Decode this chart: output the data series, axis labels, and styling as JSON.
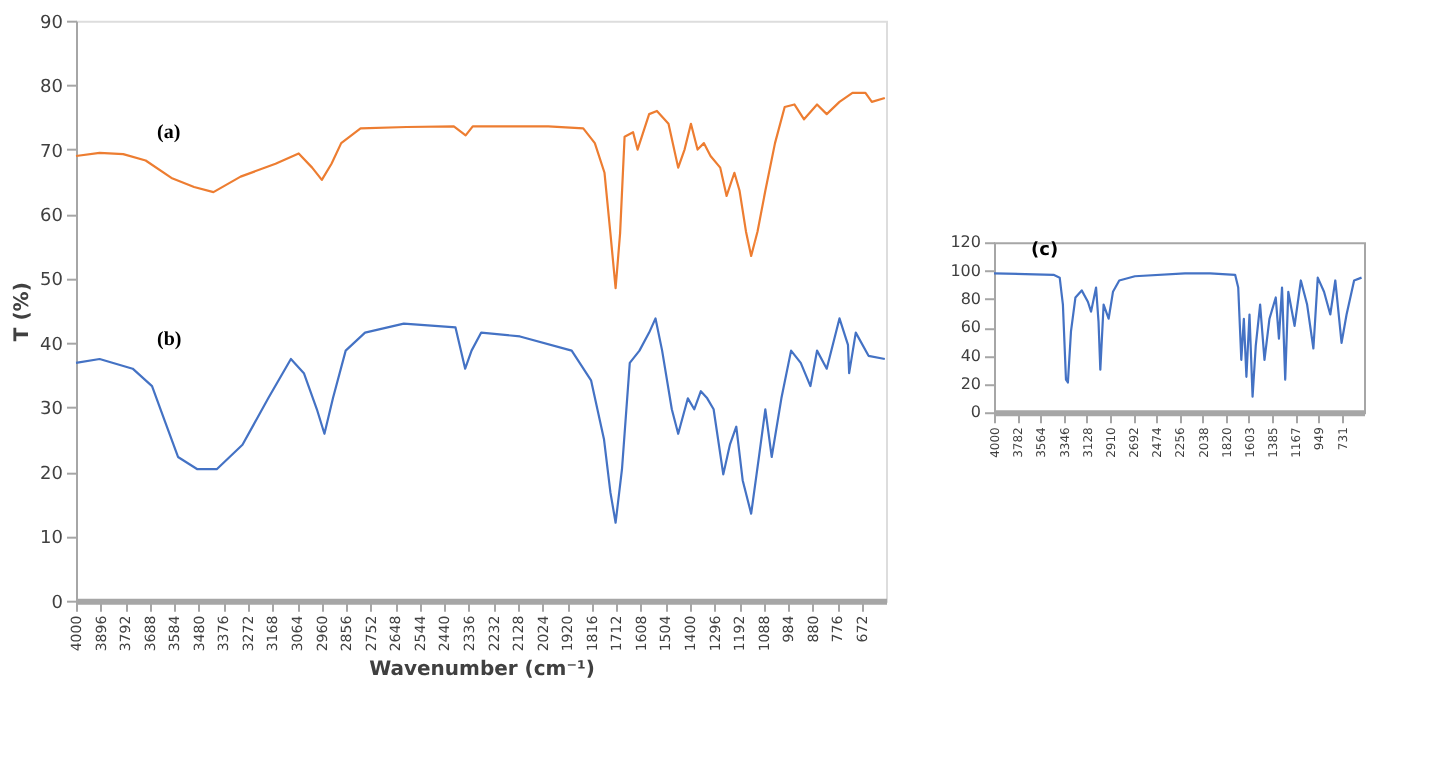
{
  "chart_data": [
    {
      "type": "line",
      "xlabel": "Wavenumber (cm⁻¹)",
      "ylabel": "T (%)",
      "xlim": [
        4000,
        570
      ],
      "ylim": [
        0,
        90
      ],
      "xticks": [
        4000,
        3896,
        3792,
        3688,
        3584,
        3480,
        3376,
        3272,
        3168,
        3064,
        2960,
        2856,
        2752,
        2648,
        2544,
        2440,
        2336,
        2232,
        2128,
        2024,
        1920,
        1816,
        1712,
        1608,
        1504,
        1400,
        1296,
        1192,
        1088,
        984,
        880,
        776,
        672
      ],
      "yticks": [
        0,
        10,
        20,
        30,
        40,
        50,
        60,
        70,
        80,
        90
      ],
      "series": [
        {
          "color": "#ed7d31",
          "x": [
            4000,
            3900,
            3800,
            3705,
            3596,
            3500,
            3418,
            3303,
            3155,
            3057,
            3000,
            2959,
            2918,
            2877,
            2795,
            2600,
            2400,
            2350,
            2320,
            2000,
            1852,
            1803,
            1762,
            1737,
            1715,
            1696,
            1677,
            1641,
            1622,
            1573,
            1540,
            1491,
            1450,
            1423,
            1396,
            1368,
            1341,
            1313,
            1272,
            1245,
            1212,
            1190,
            1163,
            1141,
            1114,
            1081,
            1040,
            999,
            958,
            917,
            862,
            821,
            767,
            712,
            657,
            630,
            575
          ],
          "values": [
            69,
            69.5,
            69.3,
            68.3,
            65.6,
            64.2,
            63.4,
            65.8,
            67.8,
            69.4,
            67.2,
            65.3,
            67.8,
            71,
            73.3,
            73.5,
            73.6,
            72.2,
            73.6,
            73.6,
            73.3,
            71,
            66.4,
            57,
            48.5,
            57,
            72,
            72.7,
            70,
            75.5,
            76,
            74,
            67.2,
            70,
            74,
            70,
            71,
            69,
            67.2,
            62.8,
            66.4,
            63.6,
            57.3,
            53.5,
            57.3,
            63.6,
            71,
            76.6,
            77,
            74.7,
            77,
            75.5,
            77.4,
            78.8,
            78.8,
            77.4,
            78
          ]
        },
        {
          "color": "#4472c4",
          "x": [
            4000,
            3900,
            3760,
            3678,
            3623,
            3568,
            3486,
            3404,
            3295,
            3186,
            3090,
            3035,
            2980,
            2948,
            2912,
            2858,
            2776,
            2612,
            2393,
            2352,
            2325,
            2284,
            2120,
            1901,
            1819,
            1764,
            1737,
            1715,
            1688,
            1655,
            1614,
            1573,
            1546,
            1518,
            1477,
            1450,
            1409,
            1382,
            1354,
            1327,
            1300,
            1259,
            1231,
            1204,
            1177,
            1141,
            1108,
            1081,
            1054,
            1013,
            972,
            931,
            890,
            862,
            821,
            767,
            731,
            726,
            698,
            644,
            575
          ],
          "values": [
            36.9,
            37.5,
            36,
            33.3,
            27.8,
            22.3,
            20.4,
            20.4,
            24.2,
            31.4,
            37.5,
            35.3,
            29.7,
            25.9,
            31.4,
            38.8,
            41.6,
            43,
            42.4,
            36,
            38.8,
            41.6,
            41,
            38.8,
            34.2,
            25,
            16.8,
            12.1,
            20.4,
            36.9,
            38.8,
            41.6,
            43.8,
            38.8,
            29.7,
            25.9,
            31.4,
            29.7,
            32.5,
            31.4,
            29.7,
            19.6,
            24.2,
            27,
            18.7,
            13.5,
            22.3,
            29.7,
            22.3,
            31.4,
            38.8,
            36.9,
            33.3,
            38.8,
            36,
            43.8,
            39.7,
            35.3,
            41.6,
            38,
            37.5
          ]
        }
      ],
      "annotations": [
        "(a)",
        "(b)"
      ]
    },
    {
      "type": "line",
      "xlim": [
        4000,
        520
      ],
      "ylim": [
        0,
        120
      ],
      "xticks": [
        4000,
        3782,
        3564,
        3346,
        3128,
        2910,
        2692,
        2474,
        2256,
        2038,
        1820,
        1603,
        1385,
        1167,
        949,
        731
      ],
      "yticks": [
        0,
        20,
        40,
        60,
        80,
        100,
        120
      ],
      "series": [
        {
          "color": "#4472c4",
          "x": [
            4000,
            3440,
            3382,
            3352,
            3323,
            3305,
            3276,
            3234,
            3175,
            3117,
            3087,
            3040,
            3017,
            3000,
            2969,
            2922,
            2881,
            2822,
            2675,
            2204,
            1968,
            1732,
            1703,
            1674,
            1650,
            1626,
            1597,
            1568,
            1538,
            1497,
            1456,
            1409,
            1350,
            1320,
            1291,
            1261,
            1232,
            1173,
            1114,
            1055,
            996,
            955,
            896,
            837,
            790,
            731,
            684,
            613,
            543
          ],
          "values": [
            98,
            97,
            95,
            76,
            23,
            21,
            57,
            81,
            86,
            78,
            71,
            88,
            64,
            30,
            76,
            66,
            85,
            93,
            96,
            98,
            98,
            97,
            88,
            37,
            66,
            25,
            69,
            11,
            47,
            76,
            37,
            66,
            81,
            52,
            88,
            23,
            85,
            61,
            93,
            76,
            45,
            95,
            85,
            69,
            93,
            49,
            69,
            93,
            95
          ]
        }
      ],
      "annotations": [
        "(c)"
      ]
    }
  ]
}
